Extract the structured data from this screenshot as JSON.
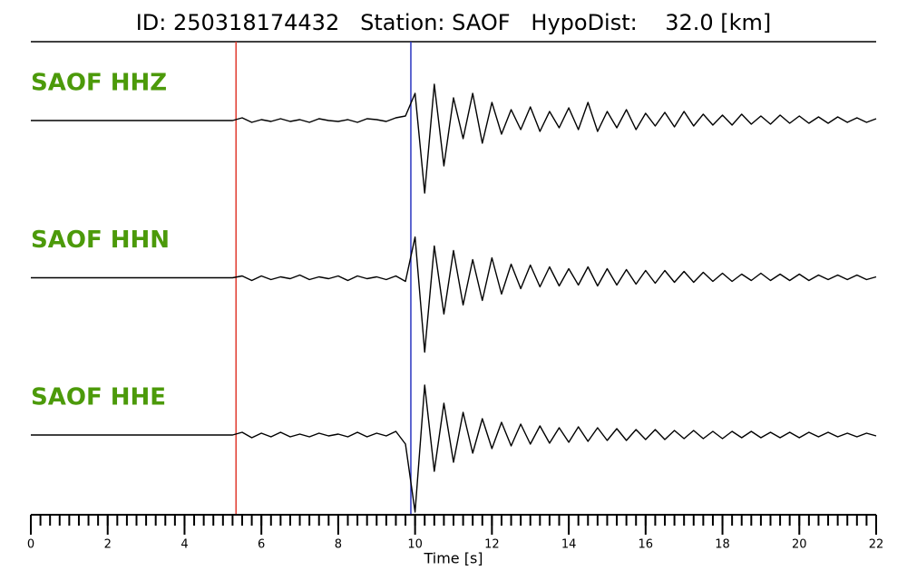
{
  "chart_data": {
    "type": "seismogram",
    "title": "ID: 250318174432   Station: SAOF   HypoDist:    32.0 [km]",
    "xlabel": "Time [s]",
    "xlim": [
      0,
      22
    ],
    "xticks": [
      0,
      2,
      4,
      6,
      8,
      10,
      12,
      14,
      16,
      18,
      20,
      22
    ],
    "xminorticks": [
      0,
      0.25,
      0.5,
      0.75,
      1,
      1.25,
      1.5,
      1.75,
      2,
      2.25,
      2.5,
      2.75,
      3,
      3.25,
      3.5,
      3.75,
      4,
      4.25,
      4.5,
      4.75,
      5,
      5.25,
      5.5,
      5.75,
      6,
      6.25,
      6.5,
      6.75,
      7,
      7.25,
      7.5,
      7.75,
      8,
      8.25,
      8.5,
      8.75,
      9,
      9.25,
      9.5,
      9.75,
      10,
      10.25,
      10.5,
      10.75,
      11,
      11.25,
      11.5,
      11.75,
      12,
      12.25,
      12.5,
      12.75,
      13,
      13.25,
      13.5,
      13.75,
      14,
      14.25,
      14.5,
      14.75,
      15,
      15.25,
      15.5,
      15.75,
      16,
      16.25,
      16.5,
      16.75,
      17,
      17.25,
      17.5,
      17.75,
      18,
      18.25,
      18.5,
      18.75,
      19,
      19.25,
      19.5,
      19.75,
      20,
      20.25,
      20.5,
      20.75,
      21,
      21.25,
      21.5,
      21.75,
      22
    ],
    "ylim": [
      -90,
      90
    ],
    "label_color": "#4c9a0a",
    "x": [
      0,
      0.25,
      0.5,
      0.75,
      1,
      1.25,
      1.5,
      1.75,
      2,
      2.25,
      2.5,
      2.75,
      3,
      3.25,
      3.5,
      3.75,
      4,
      4.25,
      4.5,
      4.75,
      5,
      5.25,
      5.5,
      5.75,
      6,
      6.25,
      6.5,
      6.75,
      7,
      7.25,
      7.5,
      7.75,
      8,
      8.25,
      8.5,
      8.75,
      9,
      9.25,
      9.5,
      9.75,
      10,
      10.25,
      10.5,
      10.75,
      11,
      11.25,
      11.5,
      11.75,
      12,
      12.25,
      12.5,
      12.75,
      13,
      13.25,
      13.5,
      13.75,
      14,
      14.25,
      14.5,
      14.75,
      15,
      15.25,
      15.5,
      15.75,
      16,
      16.25,
      16.5,
      16.75,
      17,
      17.25,
      17.5,
      17.75,
      18,
      18.25,
      18.5,
      18.75,
      19,
      19.25,
      19.5,
      19.75,
      20,
      20.25,
      20.5,
      20.75,
      21,
      21.25,
      21.5,
      21.75,
      22
    ],
    "picks": [
      {
        "time": 5.34,
        "color": "#e03a2f"
      },
      {
        "time": 9.89,
        "color": "#2a35c0"
      }
    ],
    "series": [
      {
        "name": "SAOF HHZ",
        "color": "#000000",
        "values": [
          0,
          0,
          0,
          0,
          0,
          0,
          0,
          0,
          0,
          0,
          0,
          0,
          0,
          0,
          0,
          0,
          0,
          0,
          0,
          0,
          0,
          0,
          3,
          -2,
          1,
          -1,
          2,
          -1,
          1,
          -2,
          2,
          0,
          -1,
          1,
          -2,
          2,
          1,
          -1,
          3,
          5,
          30,
          -80,
          40,
          -50,
          25,
          -20,
          30,
          -25,
          20,
          -15,
          12,
          -10,
          15,
          -12,
          10,
          -8,
          14,
          -10,
          20,
          -12,
          10,
          -8,
          12,
          -10,
          8,
          -6,
          9,
          -7,
          10,
          -6,
          7,
          -5,
          6,
          -5,
          7,
          -4,
          5,
          -4,
          6,
          -3,
          5,
          -3,
          4,
          -3,
          4,
          -2,
          3,
          -2,
          2
        ]
      },
      {
        "name": "SAOF HHN",
        "color": "#000000",
        "values": [
          0,
          0,
          0,
          0,
          0,
          0,
          0,
          0,
          0,
          0,
          0,
          0,
          0,
          0,
          0,
          0,
          0,
          0,
          0,
          0,
          0,
          0,
          2,
          -3,
          2,
          -2,
          1,
          -1,
          3,
          -2,
          1,
          -1,
          2,
          -3,
          2,
          -1,
          1,
          -2,
          2,
          -4,
          45,
          -82,
          35,
          -40,
          30,
          -30,
          20,
          -25,
          22,
          -18,
          15,
          -12,
          14,
          -10,
          12,
          -9,
          10,
          -8,
          12,
          -9,
          10,
          -8,
          9,
          -7,
          8,
          -6,
          8,
          -5,
          7,
          -5,
          6,
          -4,
          5,
          -4,
          4,
          -3,
          5,
          -3,
          4,
          -3,
          4,
          -3,
          3,
          -2,
          3,
          -2,
          3,
          -2,
          1
        ]
      },
      {
        "name": "SAOF HHE",
        "color": "#000000",
        "values": [
          0,
          0,
          0,
          0,
          0,
          0,
          0,
          0,
          0,
          0,
          0,
          0,
          0,
          0,
          0,
          0,
          0,
          0,
          0,
          0,
          0,
          0,
          3,
          -3,
          2,
          -2,
          3,
          -2,
          1,
          -2,
          2,
          -1,
          1,
          -2,
          3,
          -2,
          2,
          -1,
          4,
          -10,
          -85,
          55,
          -40,
          35,
          -30,
          25,
          -20,
          18,
          -15,
          14,
          -12,
          12,
          -10,
          10,
          -9,
          8,
          -8,
          9,
          -7,
          8,
          -6,
          7,
          -6,
          6,
          -5,
          6,
          -5,
          5,
          -4,
          5,
          -4,
          4,
          -4,
          4,
          -3,
          4,
          -3,
          3,
          -3,
          3,
          -3,
          3,
          -2,
          3,
          -2,
          2,
          -2,
          2,
          -1
        ]
      }
    ]
  }
}
